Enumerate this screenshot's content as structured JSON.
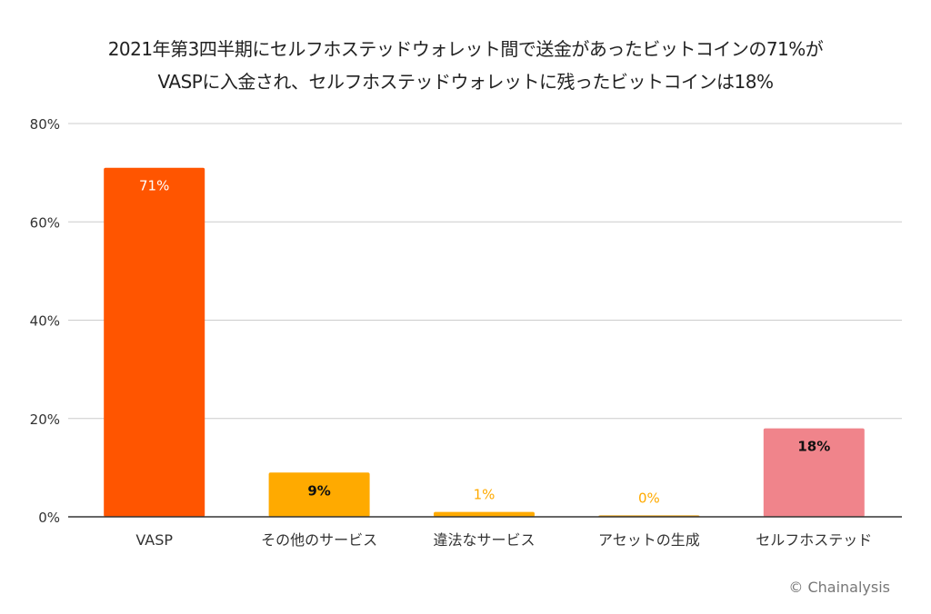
{
  "chart_data": {
    "type": "bar",
    "title_line1": "2021年第3四半期にセルフホステッドウォレット間で送金があったビットコインの71%が",
    "title_line2": "VASPに入金され、セルフホステッドウォレットに残ったビットコインは18%",
    "categories": [
      "VASP",
      "その他のサービス",
      "違法なサービス",
      "アセットの生成",
      "セルフホステッド"
    ],
    "values": [
      71,
      9,
      1,
      0.3,
      18
    ],
    "data_labels": [
      "71%",
      "9%",
      "1%",
      "0%",
      "18%"
    ],
    "colors": [
      "#ff5500",
      "#ffaa00",
      "#ffaa00",
      "#e8a317",
      "#f0848b"
    ],
    "label_colors": [
      "#ffffff",
      "#111111",
      "#ffaa00",
      "#ffaa00",
      "#111111"
    ],
    "label_inside": [
      true,
      true,
      false,
      false,
      true
    ],
    "yticks": [
      0,
      20,
      40,
      60,
      80
    ],
    "ytick_labels": [
      "0%",
      "20%",
      "40%",
      "60%",
      "80%"
    ],
    "ylim": [
      0,
      80
    ],
    "xlabel": "",
    "ylabel": "",
    "grid": true,
    "credit": "© Chainalysis"
  }
}
